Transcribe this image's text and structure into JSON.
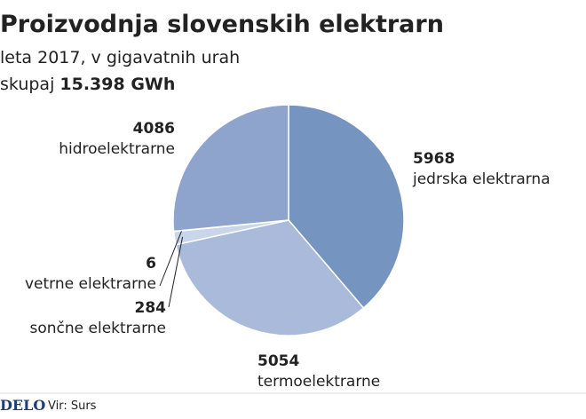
{
  "chart_data": {
    "type": "pie",
    "title": "Proizvodnja slovenskih elektrarn",
    "subtitle": "leta 2017, v gigavatnih urah",
    "total_label": "skupaj",
    "total": "15.398 GWh",
    "categories": [
      "jedrska elektrarna",
      "termoelektrarne",
      "sončne elektrarne",
      "vetrne elektrarne",
      "hidroelektrarne"
    ],
    "values": [
      5968,
      5054,
      284,
      6,
      4086
    ],
    "colors": [
      "#7594c0",
      "#a9badb",
      "#c9d5ea",
      "#eef2f8",
      "#8fa4cc"
    ],
    "source_brand": "DELO",
    "source": "Vir: Surs"
  }
}
